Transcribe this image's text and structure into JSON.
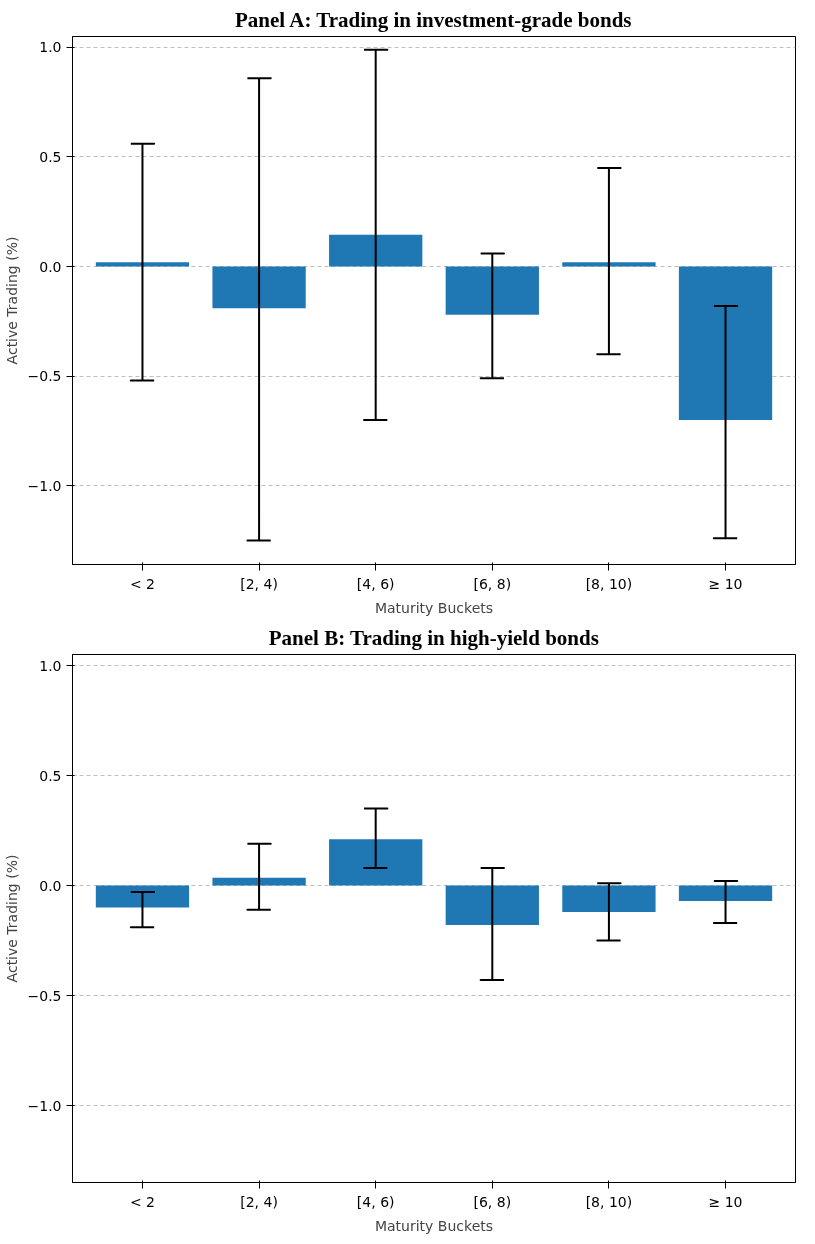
{
  "chart_data": [
    {
      "type": "bar",
      "title": "Panel A: Trading in investment-grade bonds",
      "xlabel": "Maturity Buckets",
      "ylabel": "Active Trading (%)",
      "categories": [
        "< 2",
        "[2, 4)",
        "[4, 6)",
        "[6, 8)",
        "[8, 10)",
        "≥ 10"
      ],
      "values": [
        0.02,
        -0.19,
        0.145,
        -0.22,
        0.02,
        -0.7
      ],
      "color": "#1f77b4",
      "errors": [
        [
          -0.52,
          0.56
        ],
        [
          -1.25,
          0.86
        ],
        [
          -0.7,
          0.99
        ],
        [
          -0.51,
          0.06
        ],
        [
          -0.4,
          0.45
        ],
        [
          -1.24,
          -0.18
        ]
      ],
      "ylim": [
        -1.36,
        1.05
      ],
      "yticks": [
        {
          "value": -1.0,
          "label": "−1.0"
        },
        {
          "value": -0.5,
          "label": "−0.5"
        },
        {
          "value": 0,
          "label": "0.0"
        },
        {
          "value": 0.5,
          "label": "0.5"
        },
        {
          "value": 1,
          "label": "1.0"
        }
      ],
      "grid": "y",
      "line_style": "dashed"
    },
    {
      "type": "bar",
      "title": "Panel B: Trading in high-yield bonds",
      "xlabel": "Maturity Buckets",
      "ylabel": "Active Trading (%)",
      "categories": [
        "< 2",
        "[2, 4)",
        "[4, 6)",
        "[6, 8)",
        "[8, 10)",
        "≥ 10"
      ],
      "values": [
        -0.1,
        0.035,
        0.21,
        -0.18,
        -0.12,
        -0.07
      ],
      "color": "#1f77b4",
      "errors": [
        [
          -0.19,
          -0.03
        ],
        [
          -0.11,
          0.19
        ],
        [
          0.08,
          0.35
        ],
        [
          -0.43,
          0.08
        ],
        [
          -0.25,
          0.01
        ],
        [
          -0.17,
          0.02
        ]
      ],
      "ylim": [
        -1.35,
        1.05
      ],
      "yticks": [
        {
          "value": -1.0,
          "label": "−1.0"
        },
        {
          "value": -0.5,
          "label": "−0.5"
        },
        {
          "value": 0,
          "label": "0.0"
        },
        {
          "value": 0.5,
          "label": "0.5"
        },
        {
          "value": 1,
          "label": "1.0"
        }
      ],
      "grid": "y",
      "line_style": "dashed"
    }
  ]
}
